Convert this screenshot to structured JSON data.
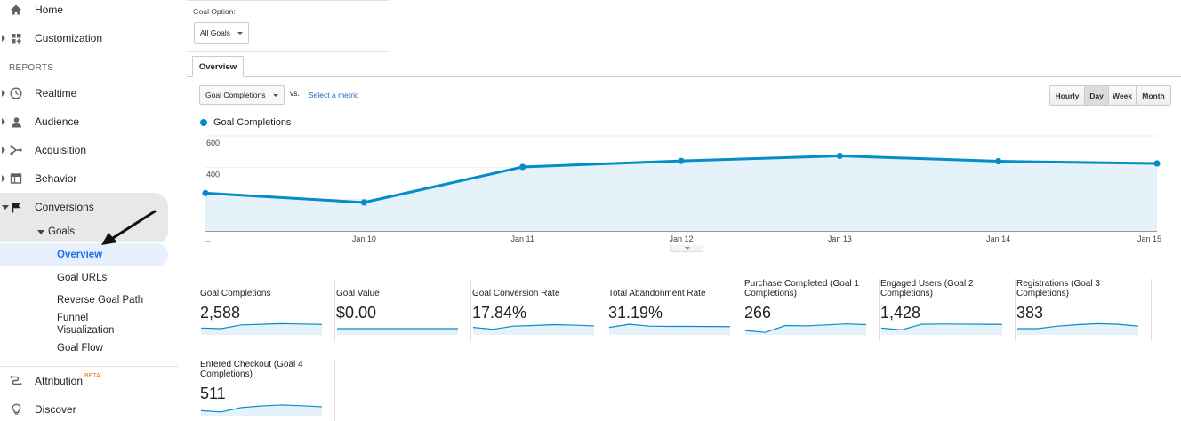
{
  "sidebar": {
    "home_label": "Home",
    "customization_label": "Customization",
    "reports_header": "REPORTS",
    "realtime_label": "Realtime",
    "audience_label": "Audience",
    "acquisition_label": "Acquisition",
    "behavior_label": "Behavior",
    "conversions_label": "Conversions",
    "goals_label": "Goals",
    "goals_items": [
      "Overview",
      "Goal URLs",
      "Reverse Goal Path",
      "Funnel Visualization",
      "Goal Flow"
    ],
    "attribution_label": "Attribution",
    "attribution_badge": "BETA",
    "discover_label": "Discover"
  },
  "toolbar": {
    "goal_option_label": "Goal Option:",
    "goal_option_value": "All Goals",
    "tab_overview": "Overview",
    "metric_value": "Goal Completions",
    "vs_label": "vs.",
    "select_metric_link": "Select a metric",
    "periods": [
      "Hourly",
      "Day",
      "Week",
      "Month"
    ],
    "active_period": "Day"
  },
  "colors": {
    "series": "#058dc7",
    "area_fill": "#e5f2fa",
    "link": "#1a66c0",
    "active_nav": "#1a73e8"
  },
  "chart_data": {
    "type": "line",
    "series": [
      {
        "name": "Goal Completions",
        "values": [
          239,
          180,
          404,
          442,
          474,
          440,
          426
        ]
      }
    ],
    "x": [
      "...",
      "Jan 10",
      "Jan 11",
      "Jan 12",
      "Jan 13",
      "Jan 14",
      "Jan 15"
    ],
    "ylim": [
      0,
      600
    ],
    "yticks": [
      200,
      400,
      600
    ],
    "grid": true
  },
  "scorecards": [
    {
      "title": "Goal Completions",
      "value": "2,588"
    },
    {
      "title": "Goal Value",
      "value": "$0.00"
    },
    {
      "title": "Goal Conversion Rate",
      "value": "17.84%"
    },
    {
      "title": "Total Abandonment Rate",
      "value": "31.19%"
    },
    {
      "title": "Purchase Completed (Goal 1 Completions)",
      "value": "266"
    },
    {
      "title": "Engaged Users (Goal 2 Completions)",
      "value": "1,428"
    },
    {
      "title": "Registrations (Goal 3 Completions)",
      "value": "383"
    },
    {
      "title": "Entered Checkout (Goal 4 Completions)",
      "value": "511"
    }
  ]
}
